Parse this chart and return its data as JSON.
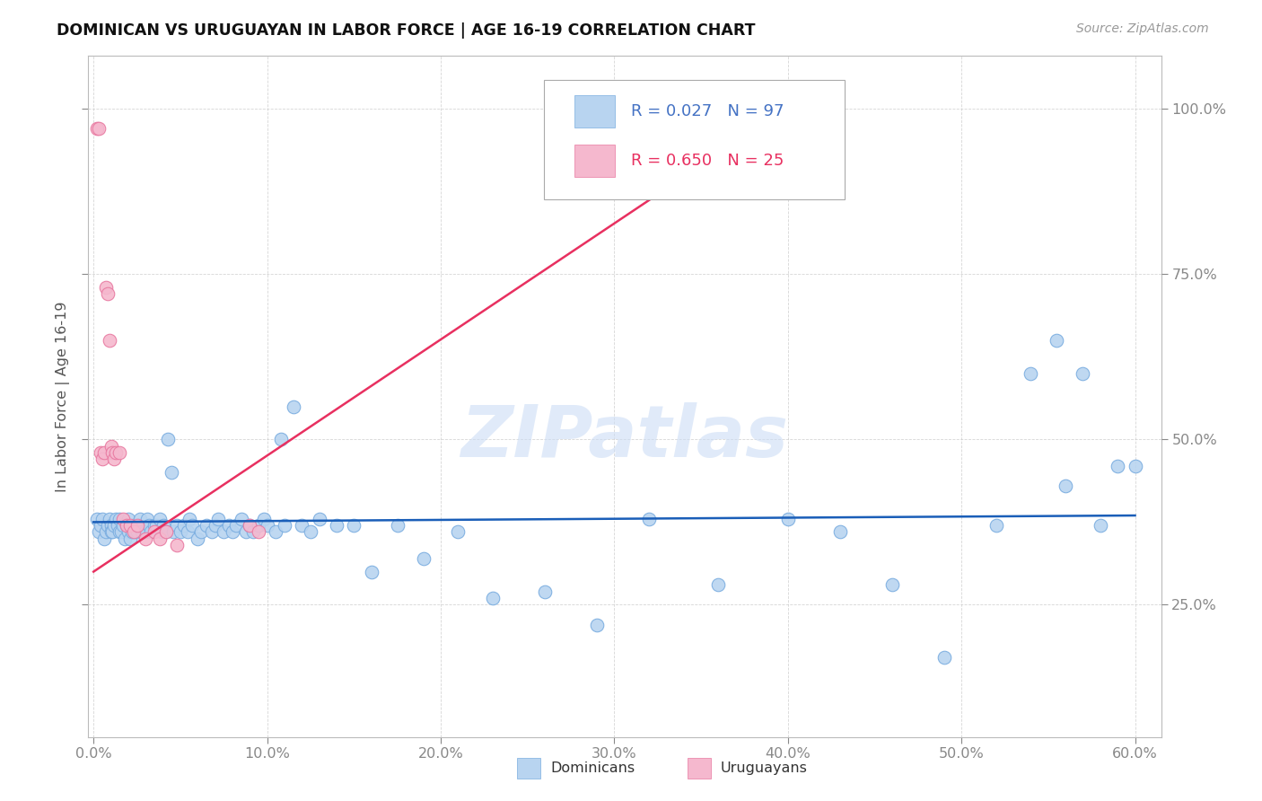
{
  "title": "DOMINICAN VS URUGUAYAN IN LABOR FORCE | AGE 16-19 CORRELATION CHART",
  "source": "Source: ZipAtlas.com",
  "xlim": [
    -0.003,
    0.615
  ],
  "ylim": [
    0.05,
    1.08
  ],
  "xtick_vals": [
    0.0,
    0.1,
    0.2,
    0.3,
    0.4,
    0.5,
    0.6
  ],
  "xtick_labels": [
    "0.0%",
    "10.0%",
    "20.0%",
    "30.0%",
    "40.0%",
    "50.0%",
    "60.0%"
  ],
  "ytick_vals": [
    0.25,
    0.5,
    0.75,
    1.0
  ],
  "ytick_labels": [
    "25.0%",
    "50.0%",
    "75.0%",
    "100.0%"
  ],
  "blue_scatter_color": "#b8d4f0",
  "blue_edge_color": "#7aade0",
  "pink_scatter_color": "#f5b8ce",
  "pink_edge_color": "#e878a0",
  "blue_line_color": "#1a5eb8",
  "pink_line_color": "#e83060",
  "label_dominicans": "Dominicans",
  "label_uruguayans": "Uruguayans",
  "watermark": "ZIPatlas",
  "legend_r_blue": "R = 0.027",
  "legend_n_blue": "N = 97",
  "legend_r_pink": "R = 0.650",
  "legend_n_pink": "N = 25",
  "dom_x": [
    0.002,
    0.003,
    0.004,
    0.005,
    0.006,
    0.007,
    0.008,
    0.009,
    0.01,
    0.01,
    0.011,
    0.012,
    0.013,
    0.014,
    0.015,
    0.015,
    0.016,
    0.017,
    0.018,
    0.019,
    0.02,
    0.02,
    0.021,
    0.022,
    0.023,
    0.024,
    0.025,
    0.025,
    0.026,
    0.027,
    0.028,
    0.03,
    0.031,
    0.032,
    0.033,
    0.035,
    0.036,
    0.038,
    0.039,
    0.04,
    0.042,
    0.043,
    0.045,
    0.046,
    0.048,
    0.05,
    0.052,
    0.054,
    0.055,
    0.057,
    0.06,
    0.062,
    0.065,
    0.068,
    0.07,
    0.072,
    0.075,
    0.078,
    0.08,
    0.082,
    0.085,
    0.088,
    0.09,
    0.092,
    0.095,
    0.098,
    0.1,
    0.105,
    0.108,
    0.11,
    0.115,
    0.12,
    0.125,
    0.13,
    0.14,
    0.15,
    0.16,
    0.175,
    0.19,
    0.21,
    0.23,
    0.26,
    0.29,
    0.32,
    0.36,
    0.4,
    0.43,
    0.46,
    0.49,
    0.52,
    0.54,
    0.555,
    0.56,
    0.57,
    0.58,
    0.59,
    0.6
  ],
  "dom_y": [
    0.38,
    0.36,
    0.37,
    0.38,
    0.35,
    0.36,
    0.37,
    0.38,
    0.37,
    0.36,
    0.36,
    0.37,
    0.38,
    0.37,
    0.36,
    0.38,
    0.36,
    0.37,
    0.35,
    0.37,
    0.36,
    0.38,
    0.35,
    0.36,
    0.37,
    0.36,
    0.37,
    0.36,
    0.37,
    0.38,
    0.36,
    0.36,
    0.38,
    0.37,
    0.36,
    0.37,
    0.37,
    0.38,
    0.36,
    0.37,
    0.36,
    0.5,
    0.45,
    0.36,
    0.37,
    0.36,
    0.37,
    0.36,
    0.38,
    0.37,
    0.35,
    0.36,
    0.37,
    0.36,
    0.37,
    0.38,
    0.36,
    0.37,
    0.36,
    0.37,
    0.38,
    0.36,
    0.37,
    0.36,
    0.37,
    0.38,
    0.37,
    0.36,
    0.5,
    0.37,
    0.55,
    0.37,
    0.36,
    0.38,
    0.37,
    0.37,
    0.3,
    0.37,
    0.32,
    0.36,
    0.26,
    0.27,
    0.22,
    0.38,
    0.28,
    0.38,
    0.36,
    0.28,
    0.17,
    0.37,
    0.6,
    0.65,
    0.43,
    0.6,
    0.37,
    0.46,
    0.46
  ],
  "uru_x": [
    0.002,
    0.003,
    0.004,
    0.005,
    0.006,
    0.007,
    0.008,
    0.009,
    0.01,
    0.011,
    0.012,
    0.013,
    0.015,
    0.017,
    0.019,
    0.021,
    0.023,
    0.025,
    0.03,
    0.035,
    0.038,
    0.042,
    0.048,
    0.09,
    0.095
  ],
  "uru_y": [
    0.97,
    0.97,
    0.48,
    0.47,
    0.48,
    0.73,
    0.72,
    0.65,
    0.49,
    0.48,
    0.47,
    0.48,
    0.48,
    0.38,
    0.37,
    0.37,
    0.36,
    0.37,
    0.35,
    0.36,
    0.35,
    0.36,
    0.34,
    0.37,
    0.36
  ],
  "dom_line_x": [
    0.0,
    0.6
  ],
  "dom_line_y": [
    0.375,
    0.385
  ],
  "uru_line_x": [
    0.0,
    0.41
  ],
  "uru_line_y": [
    0.3,
    1.02
  ]
}
